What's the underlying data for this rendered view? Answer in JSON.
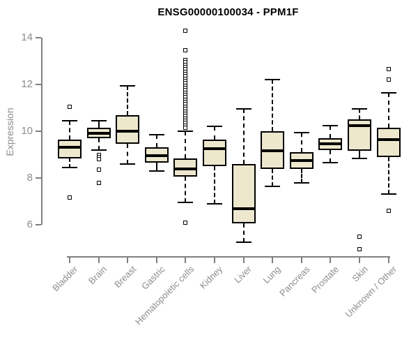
{
  "title": "ENSG00000100034 - PPM1F",
  "ylabel": "Expression",
  "colors": {
    "box_fill": "#EDE8CD",
    "box_border": "#000000",
    "median": "#000000",
    "whisker": "#000000",
    "outlier_border": "#000000",
    "outlier_fill": "#FFFFFF",
    "axis": "#7F7F7F",
    "tick_label": "#8C8C8C",
    "title_color": "#000000",
    "background": "#FFFFFF"
  },
  "chart_data": {
    "type": "boxplot",
    "title": "ENSG00000100034 - PPM1F",
    "xlabel": "",
    "ylabel": "Expression",
    "ylim": [
      6,
      14
    ],
    "yticks": [
      6,
      8,
      10,
      12,
      14
    ],
    "grid": false,
    "legend": false,
    "categories": [
      "Bladder",
      "Brain",
      "Breast",
      "Gastric",
      "Hematopoietic cells",
      "Kidney",
      "Liver",
      "Lung",
      "Pancreas",
      "Prostate",
      "Skin",
      "Unknown / Other"
    ],
    "boxes": [
      {
        "category": "Bladder",
        "whisker_low": 8.45,
        "q1": 8.85,
        "median": 9.3,
        "q3": 9.65,
        "whisker_high": 10.45,
        "outliers": [
          11.05,
          7.15
        ]
      },
      {
        "category": "Brain",
        "whisker_low": 9.2,
        "q1": 9.7,
        "median": 9.9,
        "q3": 10.15,
        "whisker_high": 10.45,
        "outliers": [
          9.0,
          8.9,
          8.8,
          8.35,
          7.8
        ]
      },
      {
        "category": "Breast",
        "whisker_low": 8.6,
        "q1": 9.45,
        "median": 10.0,
        "q3": 10.7,
        "whisker_high": 11.95,
        "outliers": []
      },
      {
        "category": "Gastric",
        "whisker_low": 8.3,
        "q1": 8.65,
        "median": 8.95,
        "q3": 9.3,
        "whisker_high": 9.85,
        "outliers": []
      },
      {
        "category": "Hematopoietic cells",
        "whisker_low": 6.95,
        "q1": 8.05,
        "median": 8.4,
        "q3": 8.85,
        "whisker_high": 10.0,
        "outliers": [
          14.3,
          13.45,
          13.05,
          12.95,
          12.85,
          12.75,
          12.65,
          12.55,
          12.45,
          12.35,
          12.25,
          12.15,
          12.05,
          11.95,
          11.85,
          11.75,
          11.65,
          11.55,
          11.45,
          11.35,
          11.25,
          11.15,
          11.05,
          10.95,
          10.85,
          10.75,
          10.65,
          10.55,
          10.45,
          10.35,
          10.25,
          10.15,
          6.1
        ]
      },
      {
        "category": "Kidney",
        "whisker_low": 6.9,
        "q1": 8.5,
        "median": 9.25,
        "q3": 9.65,
        "whisker_high": 10.2,
        "outliers": []
      },
      {
        "category": "Liver",
        "whisker_low": 5.25,
        "q1": 6.05,
        "median": 6.7,
        "q3": 8.6,
        "whisker_high": 10.95,
        "outliers": []
      },
      {
        "category": "Lung",
        "whisker_low": 7.65,
        "q1": 8.4,
        "median": 9.15,
        "q3": 10.0,
        "whisker_high": 12.2,
        "outliers": []
      },
      {
        "category": "Pancreas",
        "whisker_low": 7.8,
        "q1": 8.4,
        "median": 8.75,
        "q3": 9.1,
        "whisker_high": 9.95,
        "outliers": []
      },
      {
        "category": "Prostate",
        "whisker_low": 8.65,
        "q1": 9.2,
        "median": 9.45,
        "q3": 9.7,
        "whisker_high": 10.25,
        "outliers": []
      },
      {
        "category": "Skin",
        "whisker_low": 8.85,
        "q1": 9.15,
        "median": 10.25,
        "q3": 10.5,
        "whisker_high": 10.95,
        "outliers": [
          5.5,
          4.95
        ]
      },
      {
        "category": "Unknown / Other",
        "whisker_low": 7.3,
        "q1": 8.9,
        "median": 9.65,
        "q3": 10.15,
        "whisker_high": 11.65,
        "outliers": [
          12.65,
          12.2,
          6.6
        ]
      }
    ]
  }
}
